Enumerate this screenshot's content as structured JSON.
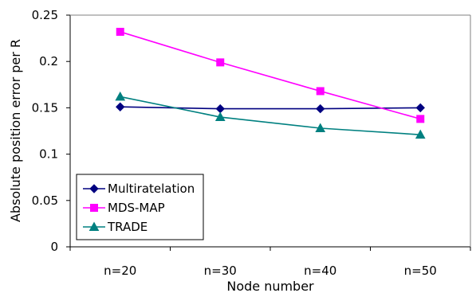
{
  "chart_data": {
    "type": "line",
    "categories": [
      "n=20",
      "n=30",
      "n=40",
      "n=50"
    ],
    "xlabel": "Node number",
    "ylabel": "Absolute position error per R",
    "ylim": [
      0,
      0.25
    ],
    "yticks": [
      0,
      0.05,
      0.1,
      0.15,
      0.2,
      0.25
    ],
    "ytick_labels": [
      "0",
      "0.05",
      "0.1",
      "0.15",
      "0.2",
      "0.25"
    ],
    "grid": false,
    "legend_position": "bottom-left",
    "series": [
      {
        "name": "Multiratelation",
        "values": [
          0.151,
          0.149,
          0.149,
          0.15
        ],
        "color": "#000080",
        "marker": "diamond"
      },
      {
        "name": "MDS-MAP",
        "values": [
          0.232,
          0.199,
          0.168,
          0.138
        ],
        "color": "#ff00ff",
        "marker": "square"
      },
      {
        "name": "TRADE",
        "values": [
          0.162,
          0.14,
          0.128,
          0.121
        ],
        "color": "#008080",
        "marker": "triangle"
      }
    ]
  }
}
